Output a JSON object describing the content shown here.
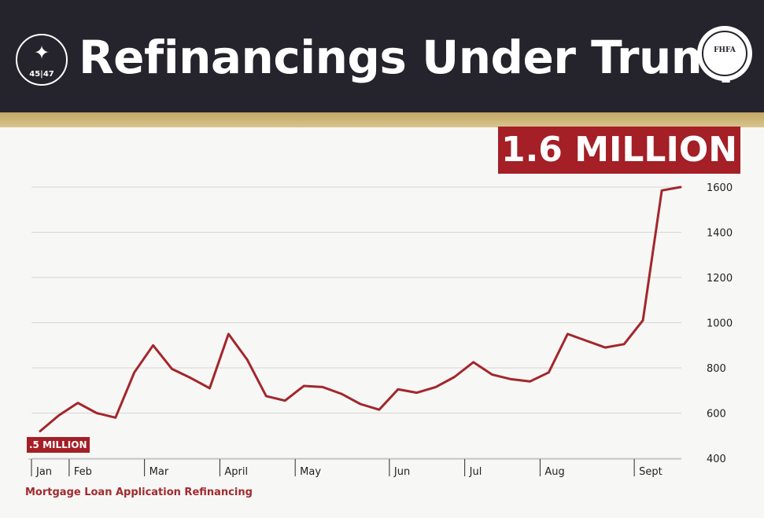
{
  "header": {
    "title": "Refinancings Under Trump",
    "left_seal_text": "45|47",
    "right_seal_text": "FHFA"
  },
  "callouts": {
    "peak": "1.6 MILLION",
    "start": ".5 MILLION"
  },
  "footer": {
    "caption": "Mortgage Loan Application Refinancing"
  },
  "colors": {
    "header_bg": "#25232b",
    "gold": "#c9b073",
    "accent_red": "#a41f26",
    "line": "#a3262b"
  },
  "chart_data": {
    "type": "line",
    "title": "Refinancings Under Trump",
    "xlabel": "",
    "ylabel": "",
    "ylim": [
      400,
      1600
    ],
    "y_ticks": [
      400,
      600,
      800,
      1000,
      1200,
      1400,
      1600
    ],
    "y_axis_position": "right",
    "grid": true,
    "month_labels": [
      "Jan",
      "Feb",
      "Mar",
      "April",
      "May",
      "Jun",
      "Jul",
      "Aug",
      "Sept"
    ],
    "month_label_index": [
      0,
      2,
      6,
      10,
      14,
      19,
      23,
      27,
      32
    ],
    "series": [
      {
        "values": [
          520,
          590,
          645,
          600,
          580,
          780,
          900,
          795,
          755,
          710,
          950,
          835,
          675,
          655,
          720,
          715,
          685,
          640,
          615,
          705,
          690,
          715,
          760,
          825,
          770,
          750,
          740,
          780,
          950,
          920,
          890,
          905,
          1010,
          1585,
          1600
        ]
      }
    ]
  }
}
